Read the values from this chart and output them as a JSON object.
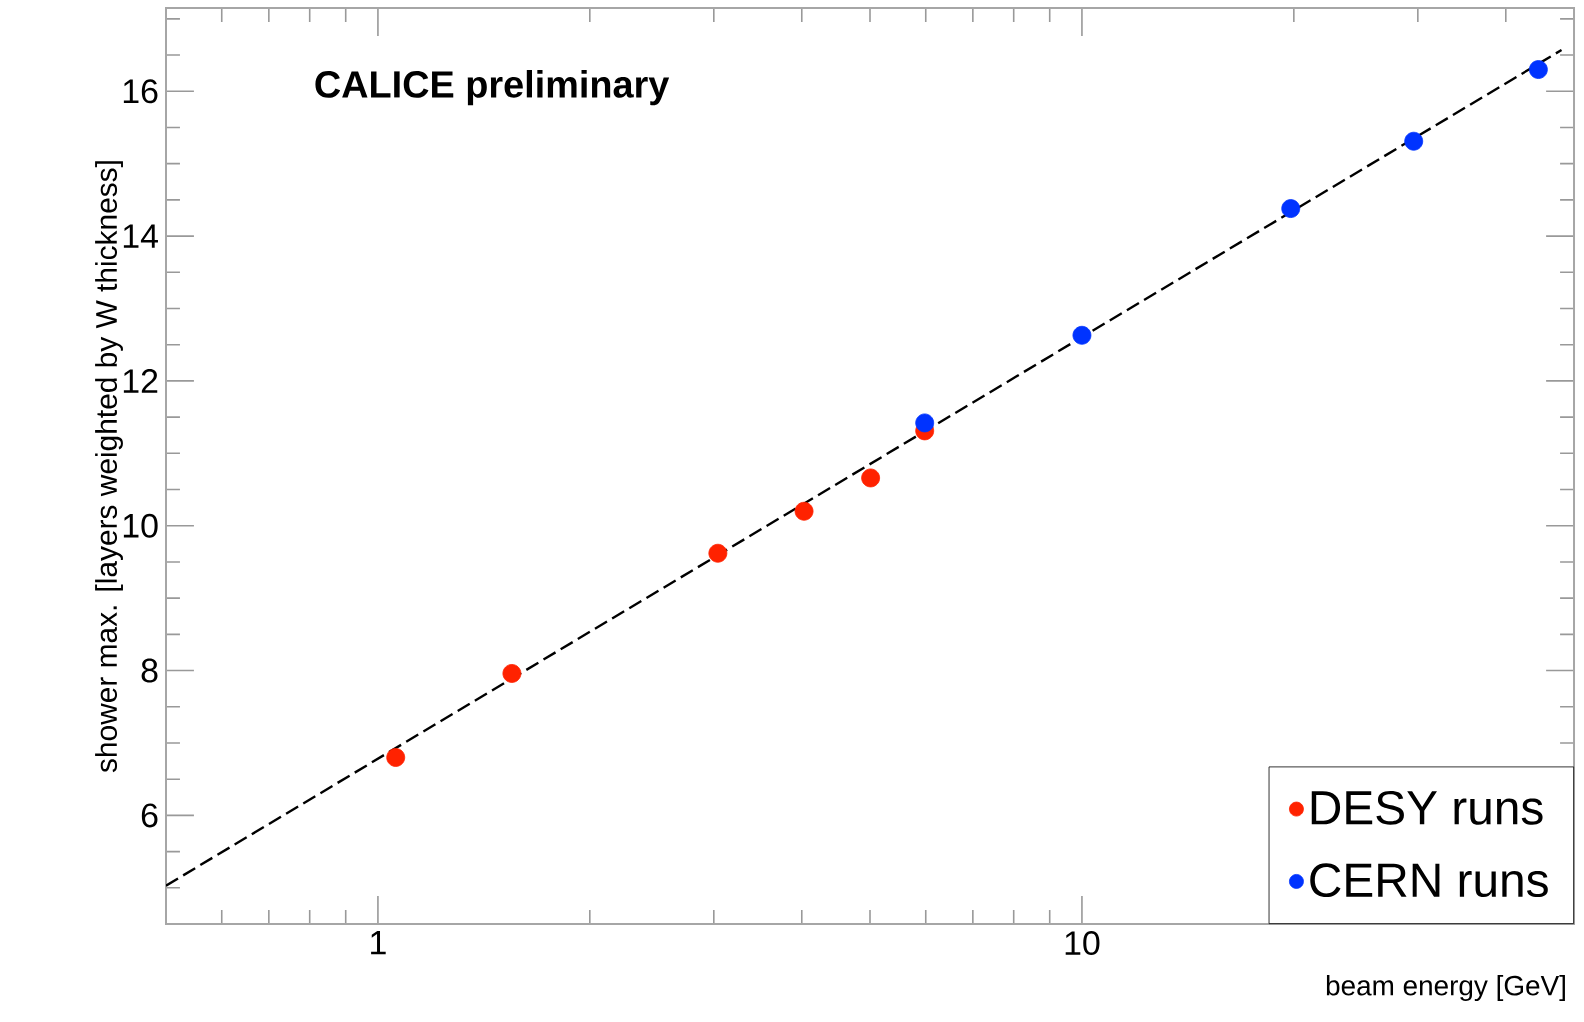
{
  "chart_data": {
    "type": "scatter",
    "title": "CALICE preliminary",
    "xlabel": "beam energy [GeV]",
    "ylabel": "shower max. [layers weighted by W thickness]",
    "log": "x",
    "xlim": [
      0.5,
      50
    ],
    "ylim": [
      4.5,
      17.15
    ],
    "xticks": [
      {
        "value": 0.6,
        "label": null
      },
      {
        "value": 0.7,
        "label": null
      },
      {
        "value": 0.8,
        "label": null
      },
      {
        "value": 0.9,
        "label": null
      },
      1,
      {
        "value": 2,
        "label": null
      },
      {
        "value": 3,
        "label": null
      },
      {
        "value": 4,
        "label": null
      },
      {
        "value": 5,
        "label": null
      },
      {
        "value": 6,
        "label": null
      },
      {
        "value": 7,
        "label": null
      },
      {
        "value": 8,
        "label": null
      },
      {
        "value": 9,
        "label": null
      },
      10,
      {
        "value": 20,
        "label": null
      },
      {
        "value": 30,
        "label": null
      },
      {
        "value": 40,
        "label": null
      }
    ],
    "yticks": [
      {
        "value": 5,
        "label": null
      },
      {
        "value": 5.5,
        "label": null
      },
      6,
      {
        "value": 6.5,
        "label": null
      },
      {
        "value": 7,
        "label": null
      },
      {
        "value": 7.5,
        "label": null
      },
      8,
      {
        "value": 8.5,
        "label": null
      },
      {
        "value": 9,
        "label": null
      },
      {
        "value": 9.5,
        "label": null
      },
      10,
      {
        "value": 10.5,
        "label": null
      },
      {
        "value": 11,
        "label": null
      },
      {
        "value": 11.5,
        "label": null
      },
      12,
      {
        "value": 12.5,
        "label": null
      },
      {
        "value": 13,
        "label": null
      },
      {
        "value": 13.5,
        "label": null
      },
      14,
      {
        "value": 14.5,
        "label": null
      },
      {
        "value": 15,
        "label": null
      },
      {
        "value": 15.5,
        "label": null
      },
      16,
      {
        "value": 16.5,
        "label": null
      },
      {
        "value": 17,
        "label": null
      }
    ],
    "marker": "circle",
    "legend": "bottom right",
    "grid": false,
    "series": [
      {
        "name": "DESY runs",
        "color": "#ff2200",
        "x": [
          1.06,
          1.55,
          3.04,
          4.03,
          5.01,
          5.98
        ],
        "values": [
          6.8,
          7.96,
          9.62,
          10.2,
          10.66,
          11.31
        ]
      },
      {
        "name": "CERN runs",
        "color": "#0033ff",
        "x": [
          5.98,
          10,
          19.8,
          29.6,
          44.5
        ],
        "values": [
          11.42,
          12.63,
          14.38,
          15.31,
          16.3
        ]
      },
      {
        "type": "line",
        "color": "#000000",
        "line_style": "dashed",
        "marker": "none",
        "x": [
          0.5,
          48
        ],
        "values": [
          5.03,
          16.57
        ]
      }
    ]
  }
}
